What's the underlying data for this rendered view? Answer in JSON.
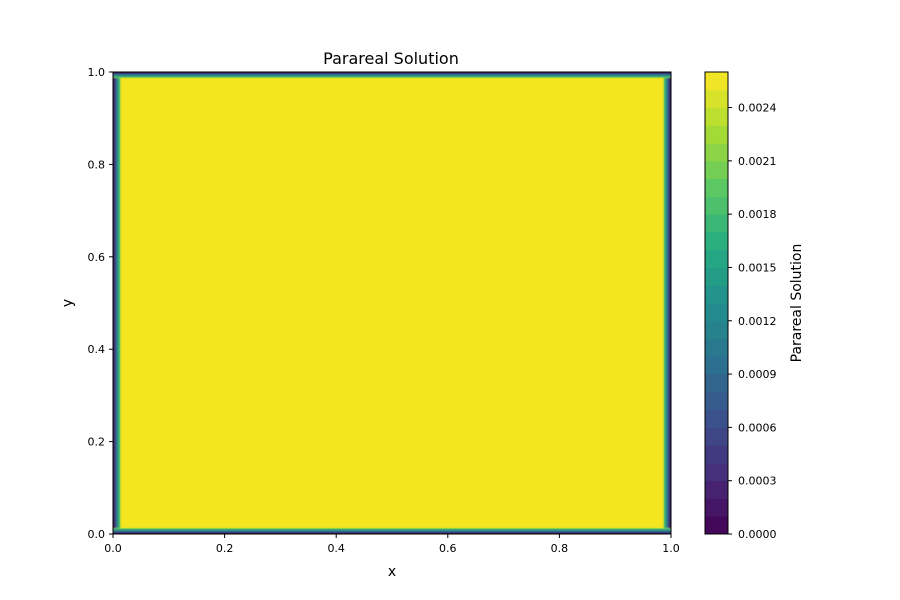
{
  "chart_data": {
    "type": "heatmap",
    "title": "Parareal Solution",
    "xlabel": "x",
    "ylabel": "y",
    "xlim": [
      0.0,
      1.0
    ],
    "ylim": [
      0.0,
      1.0
    ],
    "x_ticks": [
      "0.0",
      "0.2",
      "0.4",
      "0.6",
      "0.8",
      "1.0"
    ],
    "y_ticks": [
      "0.0",
      "0.2",
      "0.4",
      "0.6",
      "0.8",
      "1.0"
    ],
    "colormap": "viridis",
    "field_description": "Near-uniform plateau at about 0.0025 across the interior, dropping to 0 at all four domain boundaries (x=0, x=1, y=0, y=1).",
    "interior_value": 0.0025,
    "boundary_value": 0.0,
    "boundary_layer_width": 0.014,
    "grid": false,
    "colorbar": {
      "label": "Parareal Solution",
      "range": [
        0.0,
        0.0026
      ],
      "ticks": [
        "0.0000",
        "0.0003",
        "0.0006",
        "0.0009",
        "0.0012",
        "0.0015",
        "0.0018",
        "0.0021",
        "0.0024"
      ],
      "levels": 26
    }
  }
}
